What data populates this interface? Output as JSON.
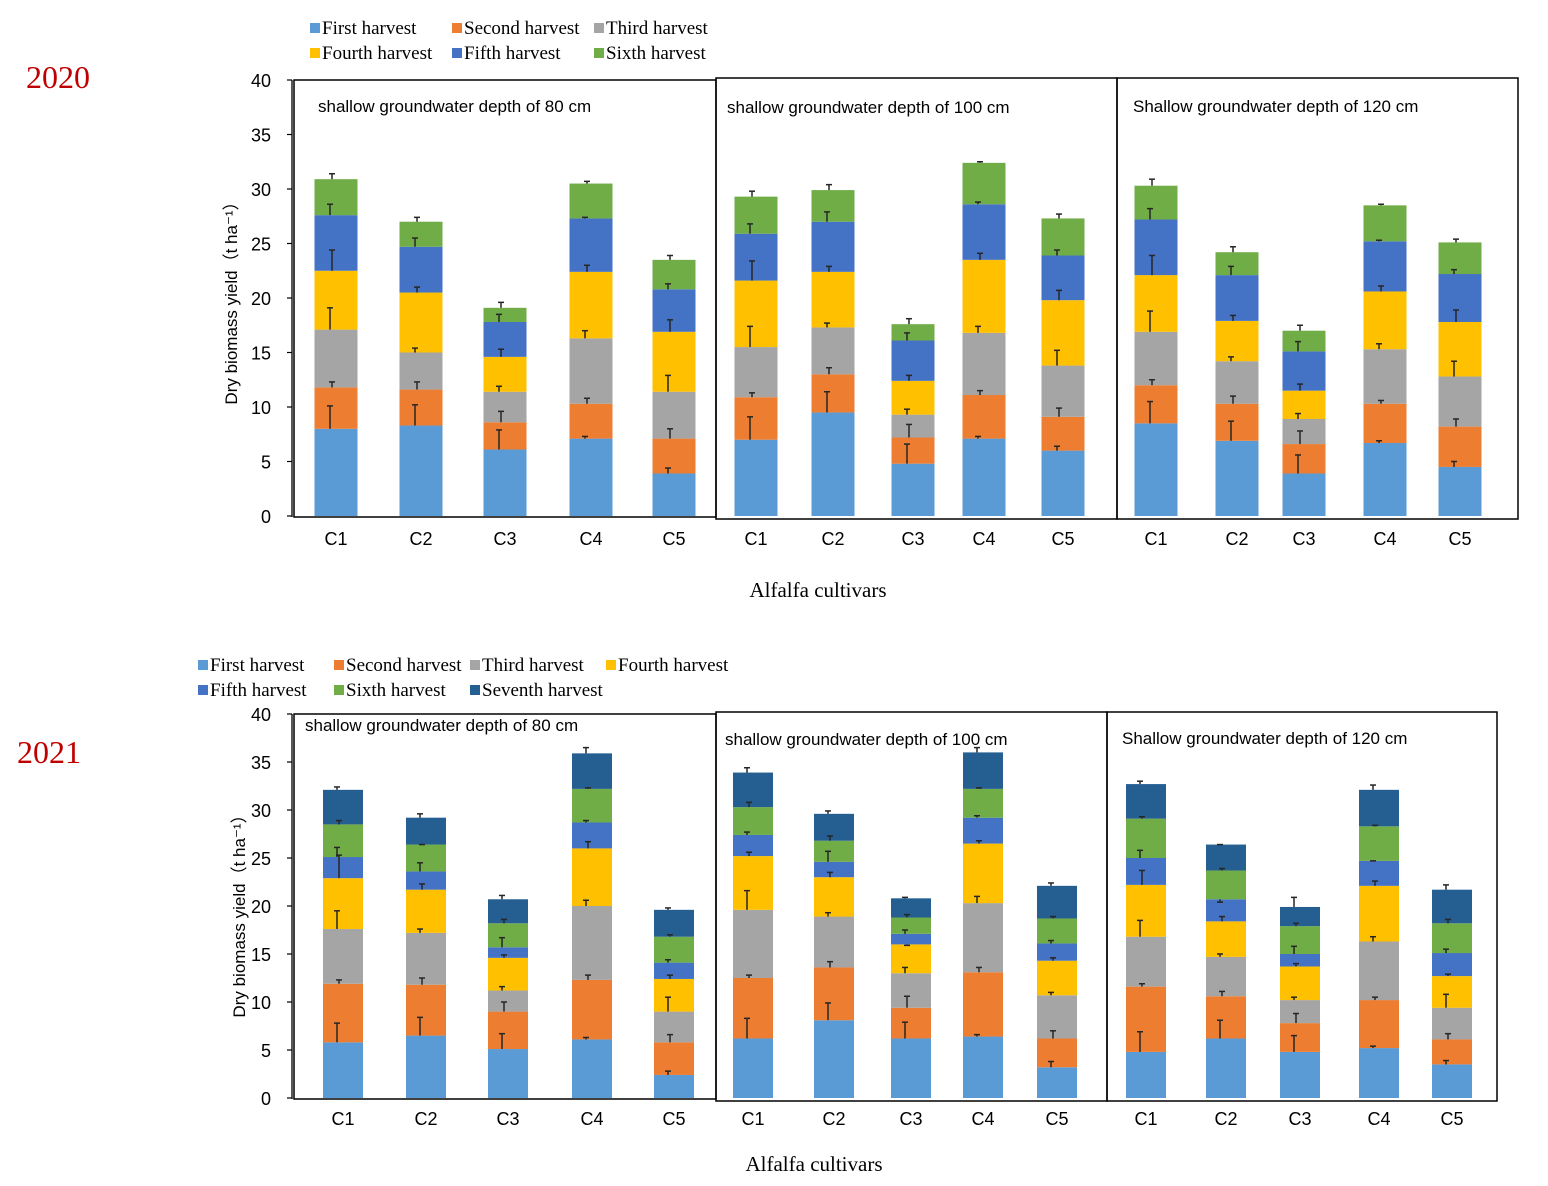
{
  "chart_data": [
    {
      "type": "bar",
      "stacked": true,
      "year_label": "2020",
      "ylabel": "Dry biomass yield（t ha⁻¹）",
      "xlabel": "Alfalfa cultivars",
      "ylim": [
        0,
        40
      ],
      "yticks": [
        "0",
        "5",
        "10",
        "15",
        "20",
        "25",
        "30",
        "35",
        "40"
      ],
      "categories": [
        "C1",
        "C2",
        "C3",
        "C4",
        "C5"
      ],
      "series_names": [
        "First harvest",
        "Second harvest",
        "Third harvest",
        "Fourth harvest",
        "Fifth harvest",
        "Sixth harvest"
      ],
      "series_colors": [
        "#5b9bd5",
        "#ed7d31",
        "#a5a5a5",
        "#ffc000",
        "#4472c4",
        "#70ad47"
      ],
      "panels": [
        {
          "title": "shallow groundwater depth of 80 cm",
          "stacks": [
            [
              8.0,
              3.8,
              5.3,
              5.4,
              5.1,
              3.3
            ],
            [
              8.3,
              3.3,
              3.4,
              5.5,
              4.2,
              2.3
            ],
            [
              6.1,
              2.5,
              2.8,
              3.2,
              3.2,
              1.3
            ],
            [
              7.1,
              3.2,
              6.0,
              6.1,
              4.9,
              3.2
            ],
            [
              3.9,
              3.2,
              4.3,
              5.5,
              3.9,
              2.7
            ]
          ],
          "error_tops": [
            [
              10.1,
              12.3,
              19.1,
              24.4,
              28.6,
              31.4
            ],
            [
              10.2,
              12.3,
              15.4,
              21.0,
              25.5,
              27.4
            ],
            [
              7.9,
              9.6,
              11.9,
              15.3,
              18.5,
              19.6
            ],
            [
              7.3,
              10.8,
              17.0,
              23.0,
              27.4,
              30.7
            ],
            [
              4.4,
              8.0,
              12.9,
              18.0,
              21.3,
              23.9
            ]
          ]
        },
        {
          "title": "shallow groundwater depth of 100 cm",
          "stacks": [
            [
              7.0,
              3.9,
              4.6,
              6.1,
              4.3,
              3.4
            ],
            [
              9.5,
              3.5,
              4.3,
              5.1,
              4.6,
              2.9
            ],
            [
              4.8,
              2.4,
              2.1,
              3.1,
              3.7,
              1.5
            ],
            [
              7.1,
              4.0,
              5.7,
              6.7,
              5.1,
              3.8
            ],
            [
              6.0,
              3.1,
              4.7,
              6.0,
              4.1,
              3.4
            ]
          ],
          "error_tops": [
            [
              9.1,
              11.3,
              17.4,
              23.4,
              26.8,
              29.8
            ],
            [
              11.4,
              13.6,
              17.7,
              22.9,
              27.9,
              30.4
            ],
            [
              6.6,
              8.4,
              9.8,
              12.9,
              16.8,
              18.1
            ],
            [
              7.3,
              11.5,
              17.4,
              24.1,
              28.8,
              32.5
            ],
            [
              6.4,
              9.9,
              15.2,
              20.7,
              24.4,
              27.7
            ]
          ]
        },
        {
          "title": "Shallow groundwater depth of  120 cm",
          "stacks": [
            [
              8.5,
              3.5,
              4.9,
              5.2,
              5.1,
              3.1
            ],
            [
              6.9,
              3.4,
              3.9,
              3.7,
              4.2,
              2.1
            ],
            [
              3.9,
              2.7,
              2.3,
              2.6,
              3.6,
              1.9
            ],
            [
              6.7,
              3.6,
              5.0,
              5.3,
              4.6,
              3.3
            ],
            [
              4.5,
              3.7,
              4.6,
              5.0,
              4.4,
              2.9
            ]
          ],
          "error_tops": [
            [
              10.5,
              12.5,
              18.8,
              23.9,
              28.2,
              30.9
            ],
            [
              8.7,
              11.0,
              14.6,
              18.4,
              22.9,
              24.7
            ],
            [
              5.6,
              7.8,
              9.4,
              12.1,
              16.0,
              17.5
            ],
            [
              6.9,
              10.6,
              15.8,
              21.1,
              25.3,
              28.6
            ],
            [
              5.0,
              8.9,
              14.2,
              18.9,
              22.6,
              25.4
            ]
          ]
        }
      ]
    },
    {
      "type": "bar",
      "stacked": true,
      "year_label": "2021",
      "ylabel": "Dry biomass yield（t ha⁻¹）",
      "xlabel": "Alfalfa cultivars",
      "ylim": [
        0,
        40
      ],
      "yticks": [
        "0",
        "5",
        "10",
        "15",
        "20",
        "25",
        "30",
        "35",
        "40"
      ],
      "categories": [
        "C1",
        "C2",
        "C3",
        "C4",
        "C5"
      ],
      "series_names": [
        "First harvest",
        "Second harvest",
        "Third harvest",
        "Fourth harvest",
        "Fifth harvest",
        "Sixth harvest",
        "Seventh harvest"
      ],
      "series_colors": [
        "#5b9bd5",
        "#ed7d31",
        "#a5a5a5",
        "#ffc000",
        "#4472c4",
        "#70ad47",
        "#255e91"
      ],
      "panels": [
        {
          "title": "shallow groundwater depth of 80 cm",
          "stacks": [
            [
              5.8,
              6.1,
              5.7,
              5.3,
              2.2,
              3.4,
              3.6
            ],
            [
              6.5,
              5.3,
              5.4,
              4.5,
              1.9,
              2.8,
              2.8
            ],
            [
              5.1,
              3.9,
              2.2,
              3.4,
              1.1,
              2.5,
              2.5
            ],
            [
              6.1,
              6.2,
              7.7,
              6.0,
              2.7,
              3.5,
              3.7
            ],
            [
              2.4,
              3.4,
              3.2,
              3.4,
              1.7,
              2.7,
              2.8
            ]
          ],
          "error_tops": [
            [
              7.8,
              12.3,
              19.5,
              25.3,
              26.1,
              28.9,
              32.4
            ],
            [
              8.4,
              12.5,
              17.6,
              22.3,
              24.5,
              26.4,
              29.6
            ],
            [
              6.7,
              10.0,
              11.6,
              14.9,
              16.7,
              18.6,
              21.1
            ],
            [
              6.3,
              12.8,
              20.6,
              26.7,
              28.9,
              32.3,
              36.5
            ],
            [
              2.8,
              6.6,
              10.5,
              12.8,
              14.4,
              17.0,
              19.8
            ]
          ]
        },
        {
          "title": "shallow groundwater depth of 100 cm",
          "stacks": [
            [
              6.2,
              6.3,
              7.1,
              5.6,
              2.2,
              2.9,
              3.6
            ],
            [
              8.1,
              5.5,
              5.3,
              4.1,
              1.6,
              2.2,
              2.8
            ],
            [
              6.2,
              3.2,
              3.6,
              3.0,
              1.1,
              1.7,
              2.0
            ],
            [
              6.4,
              6.7,
              7.2,
              6.2,
              2.7,
              3.0,
              3.8
            ],
            [
              3.2,
              3.0,
              4.5,
              3.6,
              1.8,
              2.6,
              3.4
            ]
          ],
          "error_tops": [
            [
              8.3,
              12.8,
              21.6,
              25.6,
              27.7,
              30.8,
              34.4
            ],
            [
              9.9,
              14.2,
              19.3,
              23.5,
              25.7,
              27.3,
              29.9
            ],
            [
              7.9,
              10.6,
              13.6,
              15.9,
              17.5,
              19.1,
              20.9
            ],
            [
              6.6,
              13.6,
              21.0,
              26.8,
              29.4,
              32.3,
              36.5
            ],
            [
              3.8,
              7.0,
              11.0,
              14.6,
              16.4,
              18.9,
              22.4
            ]
          ]
        },
        {
          "title": "Shallow groundwater depth of  120 cm",
          "stacks": [
            [
              4.8,
              6.8,
              5.2,
              5.4,
              2.8,
              4.1,
              3.6
            ],
            [
              6.2,
              4.4,
              4.1,
              3.7,
              2.3,
              3.0,
              2.7
            ],
            [
              4.8,
              3.0,
              2.4,
              3.5,
              1.3,
              2.9,
              2.0
            ],
            [
              5.2,
              5.0,
              6.1,
              5.8,
              2.6,
              3.6,
              3.8
            ],
            [
              3.5,
              2.6,
              3.3,
              3.3,
              2.4,
              3.1,
              3.5
            ]
          ],
          "error_tops": [
            [
              6.9,
              11.9,
              18.5,
              23.7,
              25.8,
              29.3,
              33.0
            ],
            [
              8.1,
              11.1,
              15.0,
              18.9,
              20.4,
              23.9,
              26.4
            ],
            [
              6.5,
              8.8,
              10.5,
              14.0,
              15.8,
              18.2,
              20.9
            ],
            [
              5.4,
              10.5,
              16.8,
              22.6,
              24.7,
              28.4,
              32.6
            ],
            [
              3.9,
              6.7,
              10.8,
              12.9,
              15.5,
              18.6,
              22.2
            ]
          ]
        }
      ]
    }
  ]
}
